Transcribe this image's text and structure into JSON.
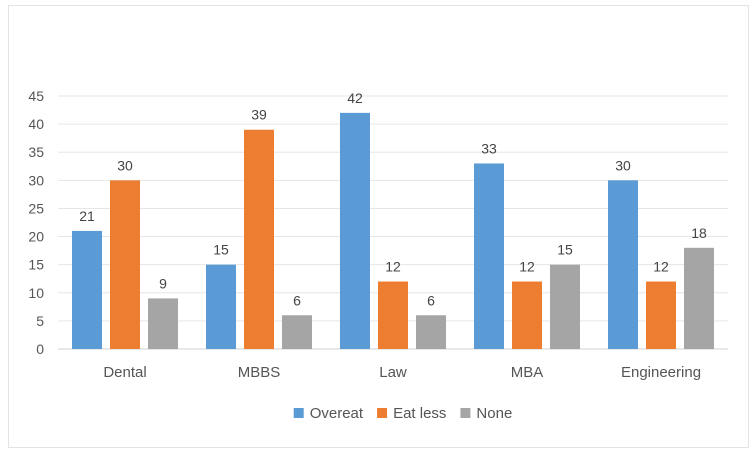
{
  "chart_data": {
    "type": "bar",
    "title": "",
    "categories": [
      "Dental",
      "MBBS",
      "Law",
      "MBA",
      "Engineering"
    ],
    "series": [
      {
        "name": "Overeat",
        "values": [
          21,
          15,
          42,
          33,
          30
        ],
        "color": "#5b9bd5"
      },
      {
        "name": "Eat less",
        "values": [
          30,
          39,
          12,
          12,
          12
        ],
        "color": "#ed7d31"
      },
      {
        "name": "None",
        "values": [
          9,
          6,
          6,
          15,
          18
        ],
        "color": "#a5a5a5"
      }
    ],
    "ylim": [
      0,
      45
    ],
    "yticks": [
      0,
      5,
      10,
      15,
      20,
      25,
      30,
      35,
      40,
      45
    ],
    "grid": true,
    "legend_position": "bottom",
    "data_labels": true
  }
}
